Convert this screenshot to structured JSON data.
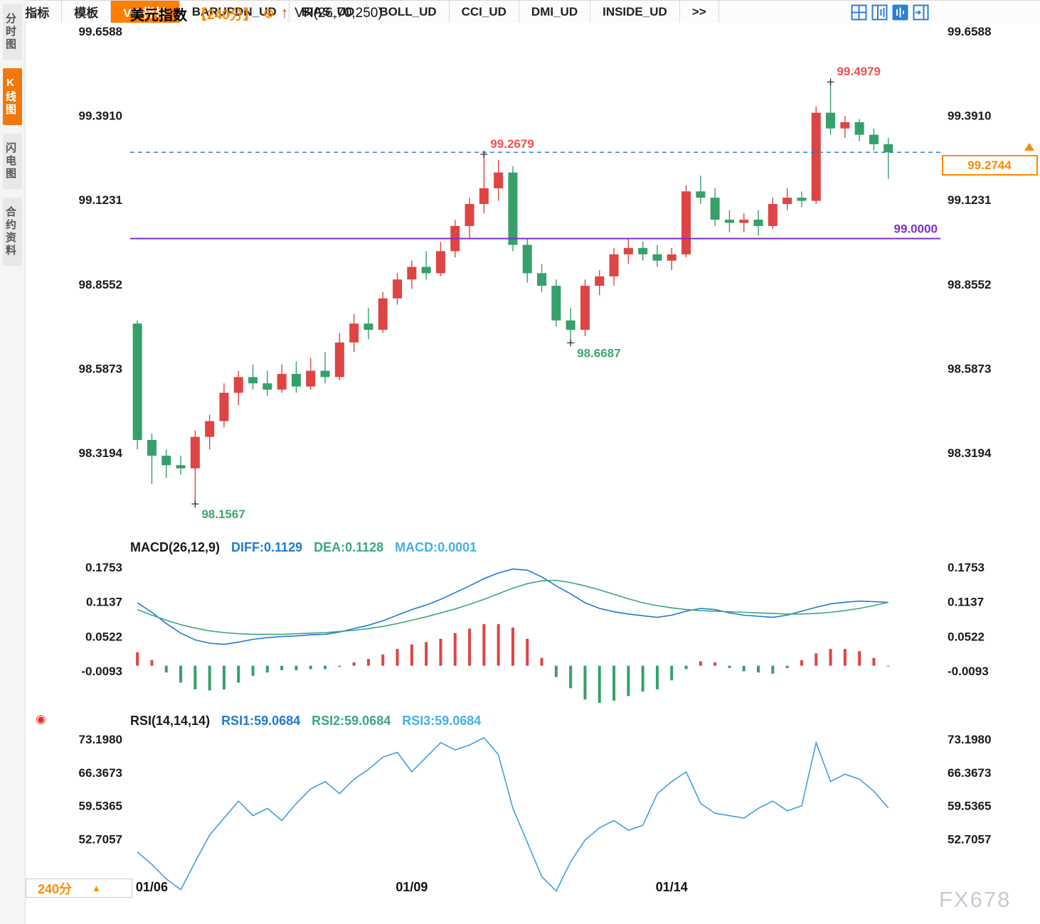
{
  "colors": {
    "up": "#df4444",
    "down": "#35a06a",
    "blue": "#1f7ad4",
    "green_line": "#3aa87c",
    "light_blue": "#45b0e6",
    "rsi_line": "#3fa0dc",
    "purple": "#7b2fd2",
    "orange": "#ff8a00",
    "axis_text": "#1a1a1a",
    "annotation_red": "#f05050",
    "annotation_green": "#3aa76d",
    "dashed_line": "#2b7fd4",
    "icon_blue": "#2b7fd4",
    "watermark": "#c6cad2",
    "cross": "#222222"
  },
  "sidebar": {
    "tabs": [
      {
        "label": "分时图",
        "active": false
      },
      {
        "label": "K线图",
        "active": true
      },
      {
        "label": "闪电图",
        "active": false
      },
      {
        "label": "合约资料",
        "active": false
      }
    ]
  },
  "header": {
    "symbol": "美元指数",
    "period": "【240分】",
    "plus_icon": "⊕",
    "arrow_icon": "↑",
    "indicator": "VR(26,70,250)"
  },
  "toolbar": {
    "icons": [
      "layout-quad-icon",
      "layout-columns-icon",
      "layout-chart-active-icon",
      "layout-expand-icon"
    ]
  },
  "price_tag": {
    "value": "99.2744",
    "arrow": "▲"
  },
  "hline": {
    "purple_value": 99.0,
    "purple_label": "99.0000",
    "dashed_value": 99.2744
  },
  "annotations": [
    {
      "text": "99.4979",
      "index": 48,
      "kind": "high",
      "color": "red"
    },
    {
      "text": "99.2679",
      "index": 24,
      "kind": "high",
      "color": "red"
    },
    {
      "text": "98.6687",
      "index": 30,
      "kind": "low",
      "color": "green"
    },
    {
      "text": "98.1567",
      "index": 4,
      "kind": "low",
      "color": "green"
    }
  ],
  "xaxis": {
    "ticks": [
      {
        "label": "01/06",
        "index": 1
      },
      {
        "label": "01/09",
        "index": 19
      },
      {
        "label": "01/14",
        "index": 37
      }
    ]
  },
  "period_box": {
    "label": "240分",
    "arrow": "▲"
  },
  "bottom_tabs": {
    "items": [
      {
        "label": "指标",
        "active": false,
        "icon": "menu-grid-icon"
      },
      {
        "label": "模板",
        "active": false
      },
      {
        "label": "VIP指标",
        "active": true
      },
      {
        "label": "BARUPDN_UD",
        "active": false
      },
      {
        "label": "BIAS_UD",
        "active": false
      },
      {
        "label": "BOLL_UD",
        "active": false
      },
      {
        "label": "CCI_UD",
        "active": false
      },
      {
        "label": "DMI_UD",
        "active": false
      },
      {
        "label": "INSIDE_UD",
        "active": false
      },
      {
        "label": ">>",
        "active": false
      }
    ]
  },
  "watermark": "FX678",
  "chart_data": [
    {
      "type": "candlestick",
      "title": "美元指数 240分",
      "period": "240min",
      "yticks": [
        99.6588,
        99.391,
        99.1231,
        98.8552,
        98.5873,
        98.3194
      ],
      "high_label": "99.4979",
      "low_label": "98.1567",
      "last_price": 99.2744,
      "candles": [
        [
          98.73,
          98.74,
          98.33,
          98.36
        ],
        [
          98.36,
          98.38,
          98.22,
          98.31
        ],
        [
          98.31,
          98.33,
          98.24,
          98.28
        ],
        [
          98.28,
          98.31,
          98.25,
          98.27
        ],
        [
          98.27,
          98.39,
          98.1567,
          98.37
        ],
        [
          98.37,
          98.44,
          98.33,
          98.42
        ],
        [
          98.42,
          98.54,
          98.4,
          98.51
        ],
        [
          98.51,
          98.58,
          98.47,
          98.56
        ],
        [
          98.56,
          98.6,
          98.52,
          98.54
        ],
        [
          98.54,
          98.58,
          98.5,
          98.52
        ],
        [
          98.52,
          98.6,
          98.51,
          98.57
        ],
        [
          98.57,
          98.61,
          98.51,
          98.53
        ],
        [
          98.53,
          98.62,
          98.52,
          98.58
        ],
        [
          98.58,
          98.64,
          98.54,
          98.56
        ],
        [
          98.56,
          98.7,
          98.55,
          98.67
        ],
        [
          98.67,
          98.76,
          98.64,
          98.73
        ],
        [
          98.73,
          98.78,
          98.68,
          98.71
        ],
        [
          98.71,
          98.83,
          98.7,
          98.81
        ],
        [
          98.81,
          98.89,
          98.79,
          98.87
        ],
        [
          98.87,
          98.93,
          98.84,
          98.91
        ],
        [
          98.91,
          98.96,
          98.87,
          98.89
        ],
        [
          98.89,
          98.99,
          98.88,
          98.96
        ],
        [
          98.96,
          99.06,
          98.94,
          99.04
        ],
        [
          99.04,
          99.13,
          99.0,
          99.11
        ],
        [
          99.11,
          99.2679,
          99.08,
          99.16
        ],
        [
          99.16,
          99.25,
          99.12,
          99.21
        ],
        [
          99.21,
          99.23,
          98.96,
          98.98
        ],
        [
          98.98,
          99.0,
          98.86,
          98.89
        ],
        [
          98.89,
          98.92,
          98.83,
          98.85
        ],
        [
          98.85,
          98.87,
          98.72,
          98.74
        ],
        [
          98.74,
          98.78,
          98.6687,
          98.71
        ],
        [
          98.71,
          98.87,
          98.69,
          98.85
        ],
        [
          98.85,
          98.9,
          98.82,
          98.88
        ],
        [
          98.88,
          98.97,
          98.85,
          98.95
        ],
        [
          98.95,
          99.0,
          98.92,
          98.97
        ],
        [
          98.97,
          98.99,
          98.93,
          98.95
        ],
        [
          98.95,
          98.98,
          98.91,
          98.93
        ],
        [
          98.93,
          98.97,
          98.9,
          98.95
        ],
        [
          98.95,
          99.17,
          98.94,
          99.15
        ],
        [
          99.15,
          99.2,
          99.11,
          99.13
        ],
        [
          99.13,
          99.16,
          99.04,
          99.06
        ],
        [
          99.06,
          99.09,
          99.02,
          99.05
        ],
        [
          99.05,
          99.08,
          99.02,
          99.06
        ],
        [
          99.06,
          99.09,
          99.01,
          99.04
        ],
        [
          99.04,
          99.13,
          99.03,
          99.11
        ],
        [
          99.11,
          99.16,
          99.09,
          99.13
        ],
        [
          99.13,
          99.15,
          99.1,
          99.12
        ],
        [
          99.12,
          99.42,
          99.11,
          99.4
        ],
        [
          99.4,
          99.4979,
          99.33,
          99.35
        ],
        [
          99.35,
          99.39,
          99.32,
          99.37
        ],
        [
          99.37,
          99.38,
          99.31,
          99.33
        ],
        [
          99.33,
          99.35,
          99.28,
          99.3
        ],
        [
          99.3,
          99.32,
          99.19,
          99.2744
        ]
      ]
    },
    {
      "type": "macd",
      "label": "MACD(26,12,9)",
      "readings": {
        "diff_label": "DIFF:0.1129",
        "dea_label": "DEA:0.1128",
        "macd_label": "MACD:0.0001"
      },
      "yticks": [
        0.1753,
        0.1137,
        0.0522,
        -0.0093
      ],
      "diff": [
        0.112,
        0.095,
        0.075,
        0.058,
        0.046,
        0.04,
        0.038,
        0.042,
        0.047,
        0.05,
        0.052,
        0.053,
        0.055,
        0.056,
        0.06,
        0.066,
        0.072,
        0.08,
        0.09,
        0.1,
        0.108,
        0.118,
        0.13,
        0.142,
        0.155,
        0.165,
        0.172,
        0.17,
        0.158,
        0.142,
        0.128,
        0.112,
        0.102,
        0.096,
        0.092,
        0.089,
        0.086,
        0.09,
        0.097,
        0.102,
        0.1,
        0.094,
        0.09,
        0.088,
        0.086,
        0.09,
        0.097,
        0.104,
        0.11,
        0.113,
        0.115,
        0.114,
        0.1129
      ],
      "dea": [
        0.1,
        0.09,
        0.081,
        0.073,
        0.067,
        0.062,
        0.059,
        0.057,
        0.056,
        0.056,
        0.056,
        0.057,
        0.058,
        0.059,
        0.061,
        0.063,
        0.066,
        0.07,
        0.075,
        0.081,
        0.087,
        0.094,
        0.101,
        0.109,
        0.118,
        0.128,
        0.138,
        0.146,
        0.151,
        0.152,
        0.148,
        0.142,
        0.135,
        0.127,
        0.119,
        0.112,
        0.107,
        0.103,
        0.1,
        0.098,
        0.097,
        0.096,
        0.095,
        0.094,
        0.093,
        0.092,
        0.092,
        0.093,
        0.095,
        0.098,
        0.102,
        0.107,
        0.1128
      ],
      "hist": [
        0.024,
        0.01,
        -0.012,
        -0.03,
        -0.042,
        -0.044,
        -0.042,
        -0.03,
        -0.018,
        -0.012,
        -0.008,
        -0.008,
        -0.006,
        -0.006,
        -0.002,
        0.006,
        0.012,
        0.02,
        0.03,
        0.038,
        0.042,
        0.048,
        0.058,
        0.066,
        0.074,
        0.074,
        0.068,
        0.048,
        0.014,
        -0.02,
        -0.04,
        -0.06,
        -0.066,
        -0.062,
        -0.054,
        -0.046,
        -0.042,
        -0.026,
        -0.006,
        0.008,
        0.006,
        -0.004,
        -0.01,
        -0.012,
        -0.014,
        -0.004,
        0.01,
        0.022,
        0.03,
        0.03,
        0.026,
        0.014,
        0.0001
      ]
    },
    {
      "type": "rsi",
      "label": "RSI(14,14,14)",
      "readings": {
        "rsi1_label": "RSI1:59.0684",
        "rsi2_label": "RSI2:59.0684",
        "rsi3_label": "RSI3:59.0684"
      },
      "yticks": [
        73.198,
        66.3673,
        59.5365,
        52.7057
      ],
      "values": [
        50.0,
        47.5,
        44.5,
        42.3,
        48.0,
        53.5,
        57.0,
        60.5,
        57.5,
        59.0,
        56.5,
        60.0,
        63.0,
        64.5,
        62.0,
        65.0,
        67.0,
        69.5,
        70.5,
        66.5,
        69.5,
        72.5,
        71.0,
        72.0,
        73.5,
        70.0,
        59.0,
        52.0,
        45.0,
        42.0,
        48.0,
        52.5,
        55.0,
        56.5,
        54.5,
        55.5,
        62.0,
        64.5,
        66.5,
        60.0,
        58.0,
        57.5,
        57.0,
        59.0,
        60.5,
        58.5,
        59.5,
        72.5,
        64.5,
        66.0,
        65.0,
        62.5,
        59.0684
      ]
    }
  ]
}
